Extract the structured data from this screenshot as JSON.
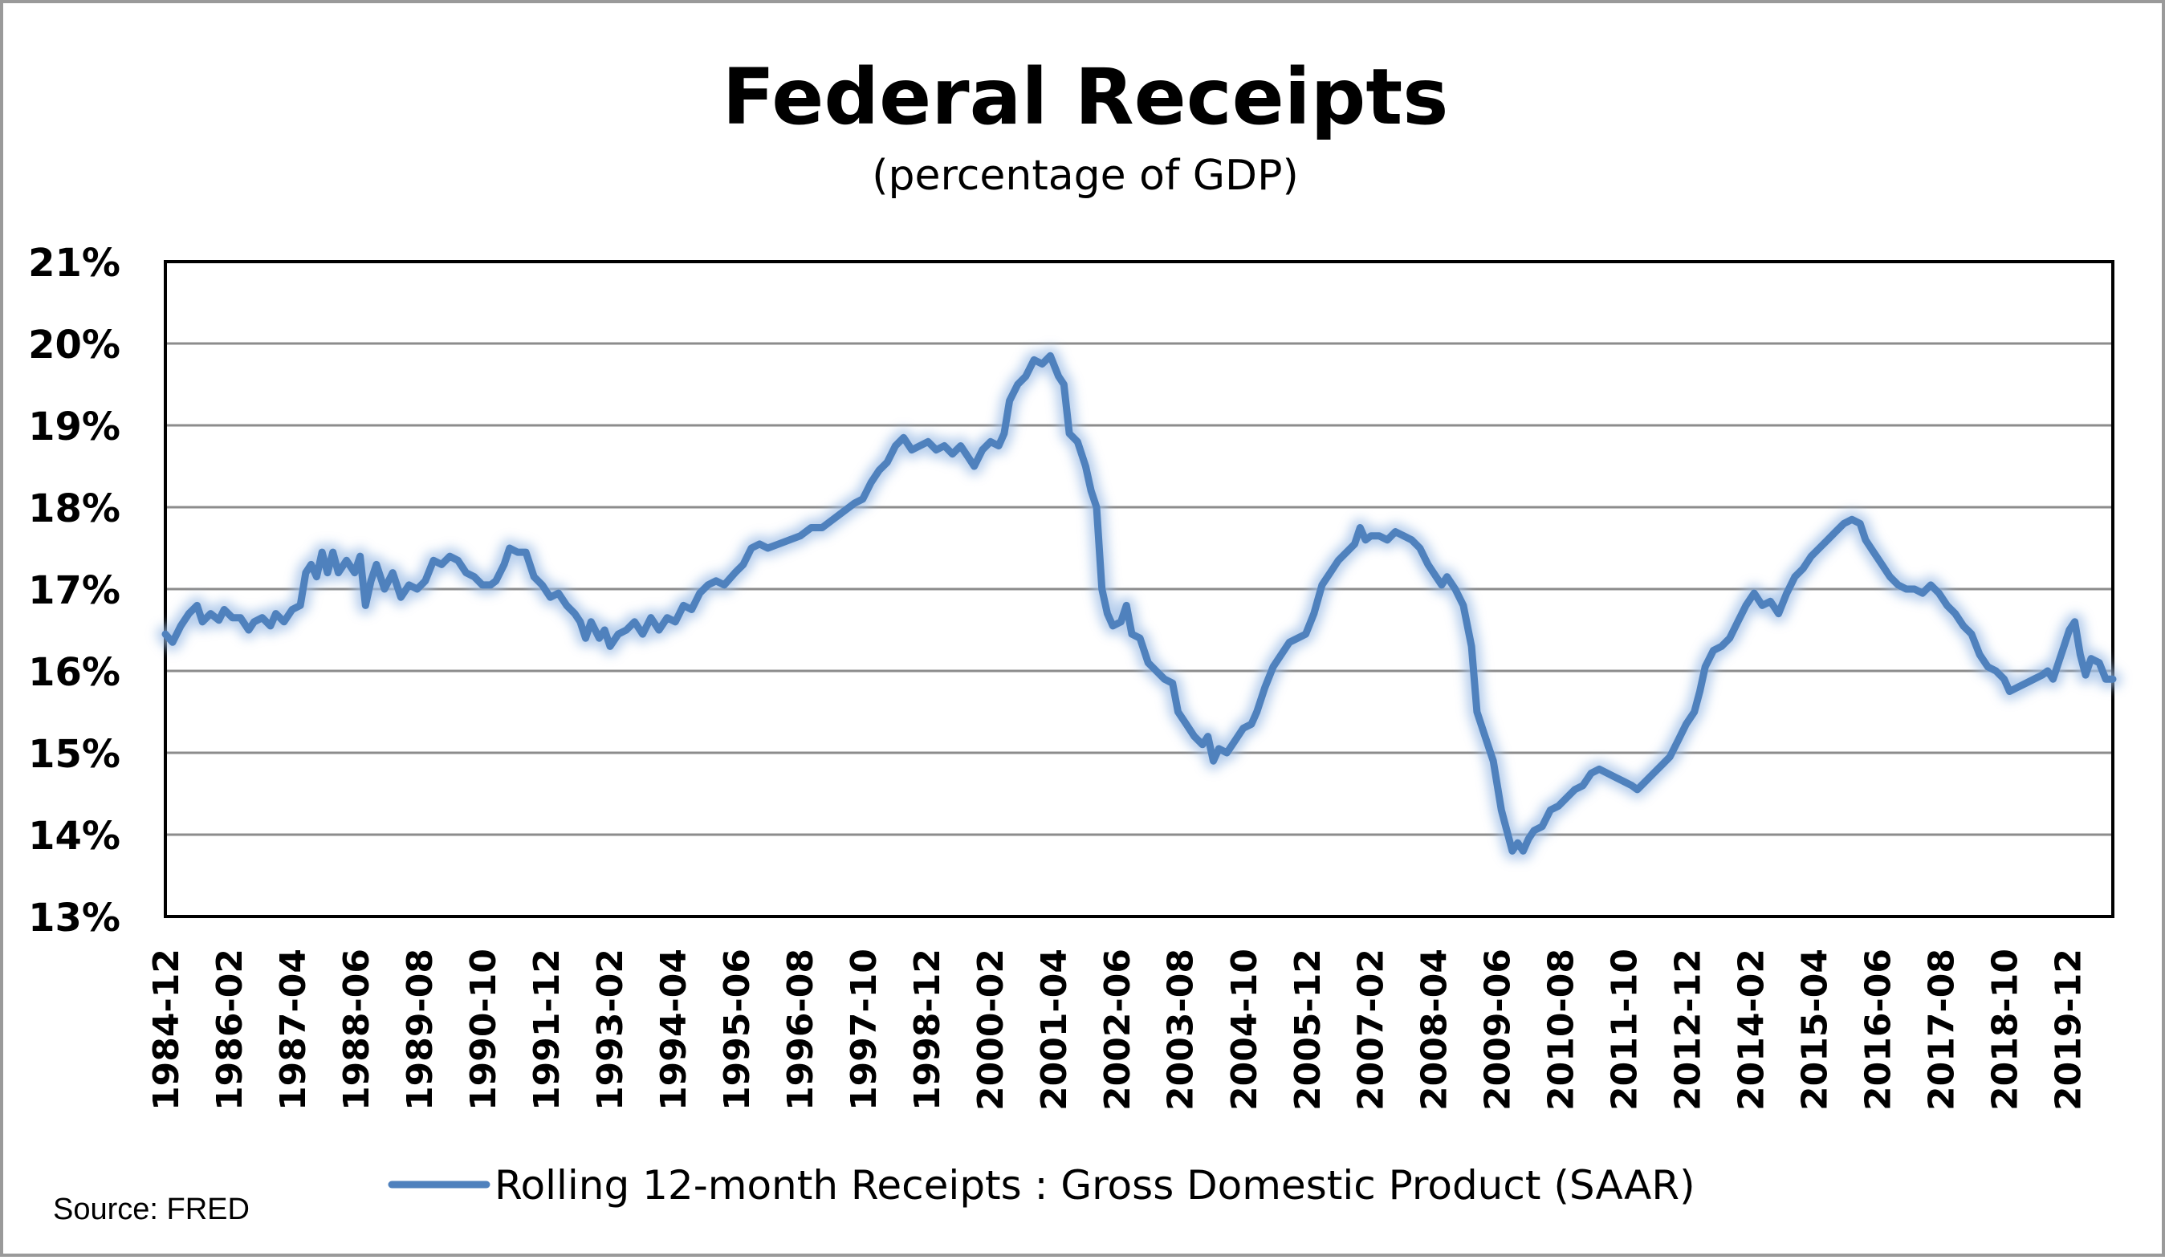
{
  "chart_data": {
    "type": "line",
    "title": "Federal Receipts",
    "subtitle": "(percentage of GDP)",
    "xlabel": "",
    "ylabel": "",
    "ylim": [
      13,
      21
    ],
    "y_ticks": [
      "13%",
      "14%",
      "15%",
      "16%",
      "17%",
      "18%",
      "19%",
      "20%",
      "21%"
    ],
    "x_range": [
      1984.917,
      2020.75
    ],
    "grid": true,
    "legend_position": "bottom",
    "x_ticks": [
      {
        "label": "1984-12",
        "t": 1984.917
      },
      {
        "label": "1986-02",
        "t": 1986.083
      },
      {
        "label": "1987-04",
        "t": 1987.25
      },
      {
        "label": "1988-06",
        "t": 1988.417
      },
      {
        "label": "1989-08",
        "t": 1989.583
      },
      {
        "label": "1990-10",
        "t": 1990.75
      },
      {
        "label": "1991-12",
        "t": 1991.917
      },
      {
        "label": "1993-02",
        "t": 1993.083
      },
      {
        "label": "1994-04",
        "t": 1994.25
      },
      {
        "label": "1995-06",
        "t": 1995.417
      },
      {
        "label": "1996-08",
        "t": 1996.583
      },
      {
        "label": "1997-10",
        "t": 1997.75
      },
      {
        "label": "1998-12",
        "t": 1998.917
      },
      {
        "label": "2000-02",
        "t": 2000.083
      },
      {
        "label": "2001-04",
        "t": 2001.25
      },
      {
        "label": "2002-06",
        "t": 2002.417
      },
      {
        "label": "2003-08",
        "t": 2003.583
      },
      {
        "label": "2004-10",
        "t": 2004.75
      },
      {
        "label": "2005-12",
        "t": 2005.917
      },
      {
        "label": "2007-02",
        "t": 2007.083
      },
      {
        "label": "2008-04",
        "t": 2008.25
      },
      {
        "label": "2009-06",
        "t": 2009.417
      },
      {
        "label": "2010-08",
        "t": 2010.583
      },
      {
        "label": "2011-10",
        "t": 2011.75
      },
      {
        "label": "2012-12",
        "t": 2012.917
      },
      {
        "label": "2014-02",
        "t": 2014.083
      },
      {
        "label": "2015-04",
        "t": 2015.25
      },
      {
        "label": "2016-06",
        "t": 2016.417
      },
      {
        "label": "2017-08",
        "t": 2017.583
      },
      {
        "label": "2018-10",
        "t": 2018.75
      },
      {
        "label": "2019-12",
        "t": 2019.917
      }
    ],
    "series": [
      {
        "name": "Rolling 12-month Receipts : Gross Domestic Product (SAAR)",
        "color": "#4f81bd",
        "points": [
          [
            1984.917,
            16.45
          ],
          [
            1985.05,
            16.35
          ],
          [
            1985.2,
            16.55
          ],
          [
            1985.35,
            16.7
          ],
          [
            1985.5,
            16.8
          ],
          [
            1985.6,
            16.6
          ],
          [
            1985.75,
            16.7
          ],
          [
            1985.9,
            16.62
          ],
          [
            1986.0,
            16.75
          ],
          [
            1986.15,
            16.65
          ],
          [
            1986.3,
            16.65
          ],
          [
            1986.45,
            16.5
          ],
          [
            1986.55,
            16.6
          ],
          [
            1986.7,
            16.65
          ],
          [
            1986.85,
            16.55
          ],
          [
            1986.95,
            16.7
          ],
          [
            1987.1,
            16.6
          ],
          [
            1987.25,
            16.75
          ],
          [
            1987.4,
            16.8
          ],
          [
            1987.5,
            17.2
          ],
          [
            1987.6,
            17.3
          ],
          [
            1987.7,
            17.15
          ],
          [
            1987.8,
            17.45
          ],
          [
            1987.9,
            17.2
          ],
          [
            1988.0,
            17.45
          ],
          [
            1988.1,
            17.2
          ],
          [
            1988.25,
            17.35
          ],
          [
            1988.4,
            17.2
          ],
          [
            1988.5,
            17.4
          ],
          [
            1988.6,
            16.8
          ],
          [
            1988.7,
            17.1
          ],
          [
            1988.8,
            17.3
          ],
          [
            1988.95,
            17.0
          ],
          [
            1989.1,
            17.2
          ],
          [
            1989.25,
            16.9
          ],
          [
            1989.4,
            17.05
          ],
          [
            1989.55,
            17.0
          ],
          [
            1989.7,
            17.1
          ],
          [
            1989.85,
            17.35
          ],
          [
            1990.0,
            17.3
          ],
          [
            1990.15,
            17.4
          ],
          [
            1990.3,
            17.35
          ],
          [
            1990.45,
            17.2
          ],
          [
            1990.6,
            17.15
          ],
          [
            1990.75,
            17.05
          ],
          [
            1990.9,
            17.05
          ],
          [
            1991.0,
            17.1
          ],
          [
            1991.15,
            17.3
          ],
          [
            1991.25,
            17.5
          ],
          [
            1991.4,
            17.45
          ],
          [
            1991.55,
            17.45
          ],
          [
            1991.7,
            17.15
          ],
          [
            1991.85,
            17.05
          ],
          [
            1992.0,
            16.9
          ],
          [
            1992.15,
            16.95
          ],
          [
            1992.3,
            16.8
          ],
          [
            1992.45,
            16.7
          ],
          [
            1992.55,
            16.6
          ],
          [
            1992.65,
            16.4
          ],
          [
            1992.75,
            16.6
          ],
          [
            1992.9,
            16.4
          ],
          [
            1993.0,
            16.5
          ],
          [
            1993.1,
            16.3
          ],
          [
            1993.25,
            16.45
          ],
          [
            1993.4,
            16.5
          ],
          [
            1993.55,
            16.6
          ],
          [
            1993.7,
            16.45
          ],
          [
            1993.85,
            16.65
          ],
          [
            1994.0,
            16.5
          ],
          [
            1994.15,
            16.65
          ],
          [
            1994.3,
            16.6
          ],
          [
            1994.45,
            16.8
          ],
          [
            1994.6,
            16.75
          ],
          [
            1994.75,
            16.95
          ],
          [
            1994.9,
            17.05
          ],
          [
            1995.05,
            17.1
          ],
          [
            1995.2,
            17.05
          ],
          [
            1995.4,
            17.2
          ],
          [
            1995.55,
            17.3
          ],
          [
            1995.7,
            17.5
          ],
          [
            1995.85,
            17.55
          ],
          [
            1996.0,
            17.5
          ],
          [
            1996.2,
            17.55
          ],
          [
            1996.4,
            17.6
          ],
          [
            1996.6,
            17.65
          ],
          [
            1996.8,
            17.75
          ],
          [
            1997.0,
            17.75
          ],
          [
            1997.2,
            17.85
          ],
          [
            1997.4,
            17.95
          ],
          [
            1997.6,
            18.05
          ],
          [
            1997.75,
            18.1
          ],
          [
            1997.9,
            18.3
          ],
          [
            1998.05,
            18.45
          ],
          [
            1998.2,
            18.55
          ],
          [
            1998.35,
            18.75
          ],
          [
            1998.5,
            18.85
          ],
          [
            1998.65,
            18.7
          ],
          [
            1998.8,
            18.75
          ],
          [
            1998.95,
            18.8
          ],
          [
            1999.1,
            18.7
          ],
          [
            1999.25,
            18.75
          ],
          [
            1999.4,
            18.65
          ],
          [
            1999.55,
            18.75
          ],
          [
            1999.7,
            18.6
          ],
          [
            1999.8,
            18.5
          ],
          [
            1999.95,
            18.7
          ],
          [
            2000.1,
            18.8
          ],
          [
            2000.25,
            18.75
          ],
          [
            2000.35,
            18.9
          ],
          [
            2000.45,
            19.3
          ],
          [
            2000.6,
            19.5
          ],
          [
            2000.75,
            19.6
          ],
          [
            2000.9,
            19.8
          ],
          [
            2001.05,
            19.75
          ],
          [
            2001.2,
            19.85
          ],
          [
            2001.35,
            19.6
          ],
          [
            2001.45,
            19.5
          ],
          [
            2001.55,
            18.9
          ],
          [
            2001.7,
            18.8
          ],
          [
            2001.85,
            18.5
          ],
          [
            2001.95,
            18.2
          ],
          [
            2002.05,
            18.0
          ],
          [
            2002.15,
            17.0
          ],
          [
            2002.25,
            16.7
          ],
          [
            2002.35,
            16.55
          ],
          [
            2002.5,
            16.6
          ],
          [
            2002.6,
            16.8
          ],
          [
            2002.7,
            16.45
          ],
          [
            2002.85,
            16.4
          ],
          [
            2003.0,
            16.1
          ],
          [
            2003.15,
            16.0
          ],
          [
            2003.3,
            15.9
          ],
          [
            2003.45,
            15.85
          ],
          [
            2003.55,
            15.5
          ],
          [
            2003.7,
            15.35
          ],
          [
            2003.85,
            15.2
          ],
          [
            2004.0,
            15.1
          ],
          [
            2004.1,
            15.2
          ],
          [
            2004.2,
            14.9
          ],
          [
            2004.3,
            15.05
          ],
          [
            2004.45,
            15.0
          ],
          [
            2004.6,
            15.15
          ],
          [
            2004.75,
            15.3
          ],
          [
            2004.9,
            15.35
          ],
          [
            2005.0,
            15.5
          ],
          [
            2005.15,
            15.8
          ],
          [
            2005.3,
            16.05
          ],
          [
            2005.45,
            16.2
          ],
          [
            2005.6,
            16.35
          ],
          [
            2005.75,
            16.4
          ],
          [
            2005.9,
            16.45
          ],
          [
            2006.05,
            16.7
          ],
          [
            2006.2,
            17.05
          ],
          [
            2006.35,
            17.2
          ],
          [
            2006.5,
            17.35
          ],
          [
            2006.65,
            17.45
          ],
          [
            2006.8,
            17.55
          ],
          [
            2006.9,
            17.75
          ],
          [
            2007.0,
            17.6
          ],
          [
            2007.1,
            17.65
          ],
          [
            2007.25,
            17.65
          ],
          [
            2007.4,
            17.6
          ],
          [
            2007.55,
            17.7
          ],
          [
            2007.7,
            17.65
          ],
          [
            2007.85,
            17.6
          ],
          [
            2008.0,
            17.5
          ],
          [
            2008.15,
            17.3
          ],
          [
            2008.3,
            17.15
          ],
          [
            2008.4,
            17.05
          ],
          [
            2008.5,
            17.15
          ],
          [
            2008.65,
            17.0
          ],
          [
            2008.8,
            16.8
          ],
          [
            2008.95,
            16.3
          ],
          [
            2009.05,
            15.5
          ],
          [
            2009.2,
            15.2
          ],
          [
            2009.35,
            14.9
          ],
          [
            2009.5,
            14.3
          ],
          [
            2009.6,
            14.05
          ],
          [
            2009.7,
            13.8
          ],
          [
            2009.8,
            13.9
          ],
          [
            2009.9,
            13.8
          ],
          [
            2010.0,
            13.95
          ],
          [
            2010.1,
            14.05
          ],
          [
            2010.25,
            14.1
          ],
          [
            2010.4,
            14.3
          ],
          [
            2010.55,
            14.35
          ],
          [
            2010.7,
            14.45
          ],
          [
            2010.85,
            14.55
          ],
          [
            2011.0,
            14.6
          ],
          [
            2011.15,
            14.75
          ],
          [
            2011.3,
            14.8
          ],
          [
            2011.45,
            14.75
          ],
          [
            2011.6,
            14.7
          ],
          [
            2011.75,
            14.65
          ],
          [
            2011.9,
            14.6
          ],
          [
            2012.0,
            14.55
          ],
          [
            2012.15,
            14.65
          ],
          [
            2012.3,
            14.75
          ],
          [
            2012.45,
            14.85
          ],
          [
            2012.6,
            14.95
          ],
          [
            2012.75,
            15.15
          ],
          [
            2012.9,
            15.35
          ],
          [
            2013.05,
            15.5
          ],
          [
            2013.15,
            15.75
          ],
          [
            2013.25,
            16.05
          ],
          [
            2013.4,
            16.25
          ],
          [
            2013.55,
            16.3
          ],
          [
            2013.7,
            16.4
          ],
          [
            2013.85,
            16.6
          ],
          [
            2014.0,
            16.8
          ],
          [
            2014.15,
            16.95
          ],
          [
            2014.3,
            16.8
          ],
          [
            2014.45,
            16.85
          ],
          [
            2014.6,
            16.7
          ],
          [
            2014.75,
            16.95
          ],
          [
            2014.9,
            17.15
          ],
          [
            2015.05,
            17.25
          ],
          [
            2015.2,
            17.4
          ],
          [
            2015.35,
            17.5
          ],
          [
            2015.5,
            17.6
          ],
          [
            2015.65,
            17.7
          ],
          [
            2015.8,
            17.8
          ],
          [
            2015.95,
            17.85
          ],
          [
            2016.1,
            17.8
          ],
          [
            2016.2,
            17.6
          ],
          [
            2016.35,
            17.45
          ],
          [
            2016.5,
            17.3
          ],
          [
            2016.65,
            17.15
          ],
          [
            2016.8,
            17.05
          ],
          [
            2016.95,
            17.0
          ],
          [
            2017.1,
            17.0
          ],
          [
            2017.25,
            16.95
          ],
          [
            2017.4,
            17.05
          ],
          [
            2017.55,
            16.95
          ],
          [
            2017.7,
            16.8
          ],
          [
            2017.85,
            16.7
          ],
          [
            2018.0,
            16.55
          ],
          [
            2018.15,
            16.45
          ],
          [
            2018.3,
            16.2
          ],
          [
            2018.45,
            16.05
          ],
          [
            2018.6,
            16.0
          ],
          [
            2018.75,
            15.9
          ],
          [
            2018.85,
            15.75
          ],
          [
            2019.0,
            15.8
          ],
          [
            2019.15,
            15.85
          ],
          [
            2019.3,
            15.9
          ],
          [
            2019.45,
            15.95
          ],
          [
            2019.55,
            16.0
          ],
          [
            2019.65,
            15.9
          ],
          [
            2019.75,
            16.1
          ],
          [
            2019.85,
            16.3
          ],
          [
            2019.95,
            16.5
          ],
          [
            2020.05,
            16.6
          ],
          [
            2020.15,
            16.2
          ],
          [
            2020.25,
            15.95
          ],
          [
            2020.35,
            16.15
          ],
          [
            2020.5,
            16.1
          ],
          [
            2020.62,
            15.9
          ],
          [
            2020.75,
            15.9
          ]
        ]
      }
    ]
  },
  "source": "Source: FRED"
}
